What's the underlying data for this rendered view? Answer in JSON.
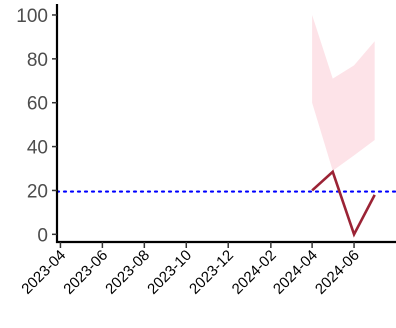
{
  "chart_data": {
    "type": "line",
    "title": "",
    "xlabel": "",
    "ylabel": "",
    "x_ticks": [
      "2023-04",
      "2023-06",
      "2023-08",
      "2023-10",
      "2023-12",
      "2024-02",
      "2024-04",
      "2024-06"
    ],
    "y_ticks": [
      0,
      20,
      40,
      60,
      80,
      100
    ],
    "xlim": [
      "2023-03-27",
      "2024-08-01"
    ],
    "ylim": [
      -3.5,
      105
    ],
    "grid": false,
    "legend": "none",
    "series": [
      {
        "x": [
          "2024-04-01",
          "2024-05-01",
          "2024-06-01",
          "2024-07-01"
        ],
        "y": [
          20,
          28.5,
          0,
          18
        ],
        "color": "#9b2335"
      }
    ],
    "band": {
      "x": [
        "2024-04-01",
        "2024-05-01",
        "2024-06-01",
        "2024-07-01"
      ],
      "lower": [
        60,
        29,
        36,
        43
      ],
      "upper": [
        100,
        71,
        77,
        88
      ],
      "color": "#fde3e8"
    },
    "reference_line": {
      "y": 19.5,
      "color": "#0000ff",
      "style": "dotted"
    }
  }
}
